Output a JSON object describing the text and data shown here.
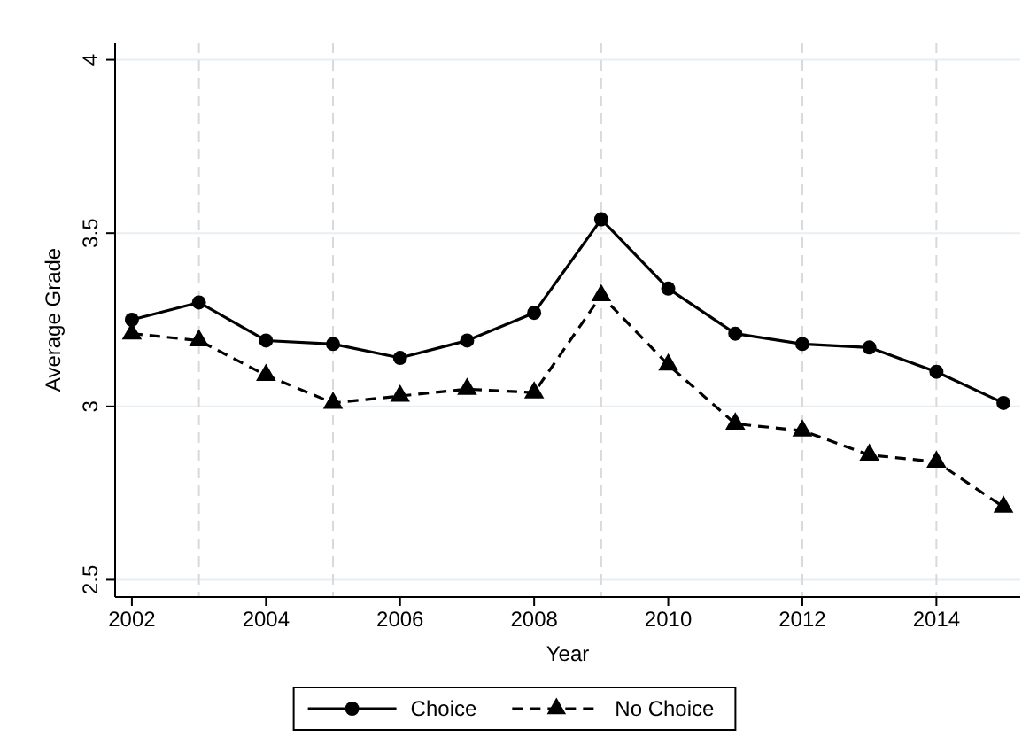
{
  "chart_data": {
    "type": "line",
    "xlabel": "Year",
    "ylabel": "Average Grade",
    "x": [
      2002,
      2003,
      2004,
      2005,
      2006,
      2007,
      2008,
      2009,
      2010,
      2011,
      2012,
      2013,
      2014,
      2015
    ],
    "series": [
      {
        "name": "Choice",
        "color": "#000000",
        "marker": "circle",
        "line_style": "solid",
        "values": [
          3.25,
          3.3,
          3.19,
          3.18,
          3.14,
          3.19,
          3.27,
          3.54,
          3.34,
          3.21,
          3.18,
          3.17,
          3.1,
          3.01
        ]
      },
      {
        "name": "No Choice",
        "color": "#000000",
        "marker": "triangle",
        "line_style": "dashed",
        "values": [
          3.21,
          3.19,
          3.09,
          3.01,
          3.03,
          3.05,
          3.04,
          3.32,
          3.12,
          2.95,
          2.93,
          2.86,
          2.84,
          2.71
        ]
      }
    ],
    "xlim": [
      2001.75,
      2015.25
    ],
    "xticks": [
      2002,
      2004,
      2006,
      2008,
      2010,
      2012,
      2014
    ],
    "ylim": [
      2.45,
      4.05
    ],
    "yticks": [
      {
        "value": 2.5,
        "label": "2.5"
      },
      3,
      {
        "value": 3.5,
        "label": "3.5"
      },
      4
    ],
    "grid": "y",
    "legend": "bottom",
    "ref_lines": [
      {
        "axis": "x",
        "value": 2003,
        "color": "#d9d9d9",
        "line_style": "dashed"
      },
      {
        "axis": "x",
        "value": 2005,
        "color": "#d9d9d9",
        "line_style": "dashed"
      },
      {
        "axis": "x",
        "value": 2009,
        "color": "#d9d9d9",
        "line_style": "dashed"
      },
      {
        "axis": "x",
        "value": 2012,
        "color": "#d9d9d9",
        "line_style": "dashed"
      },
      {
        "axis": "x",
        "value": 2014,
        "color": "#d9d9d9",
        "line_style": "dashed"
      }
    ]
  }
}
